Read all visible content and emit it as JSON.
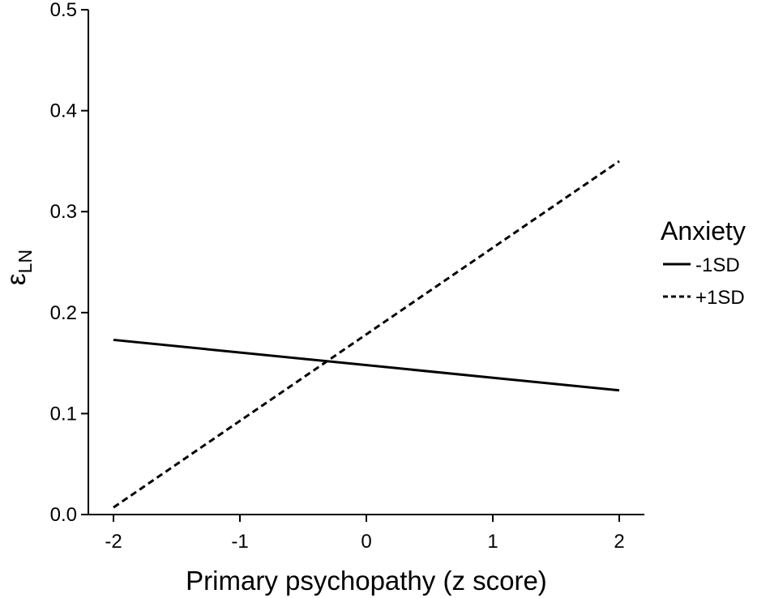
{
  "chart_data": {
    "type": "line",
    "xlabel": "Primary psychopathy (z score)",
    "ylabel": "ε",
    "ylabel_subscript": "LN",
    "xlim": [
      -2,
      2
    ],
    "ylim": [
      0,
      0.5
    ],
    "xticks": [
      -2,
      -1,
      0,
      1,
      2
    ],
    "xtick_labels": [
      "-2",
      "-1",
      "0",
      "1",
      "2"
    ],
    "yticks": [
      0,
      0.1,
      0.2,
      0.3,
      0.4,
      0.5
    ],
    "ytick_labels": [
      "0.0",
      "0.1",
      "0.2",
      "0.3",
      "0.4",
      "0.5"
    ],
    "grid": false,
    "legend": {
      "title": "Anxiety",
      "position": "right"
    },
    "series": [
      {
        "name": "-1SD",
        "linestyle": "solid",
        "color": "#000000",
        "x": [
          -2,
          2
        ],
        "y": [
          0.173,
          0.123
        ]
      },
      {
        "name": "+1SD",
        "linestyle": "dashed",
        "color": "#000000",
        "x": [
          -2,
          2
        ],
        "y": [
          0.007,
          0.35
        ]
      }
    ]
  }
}
